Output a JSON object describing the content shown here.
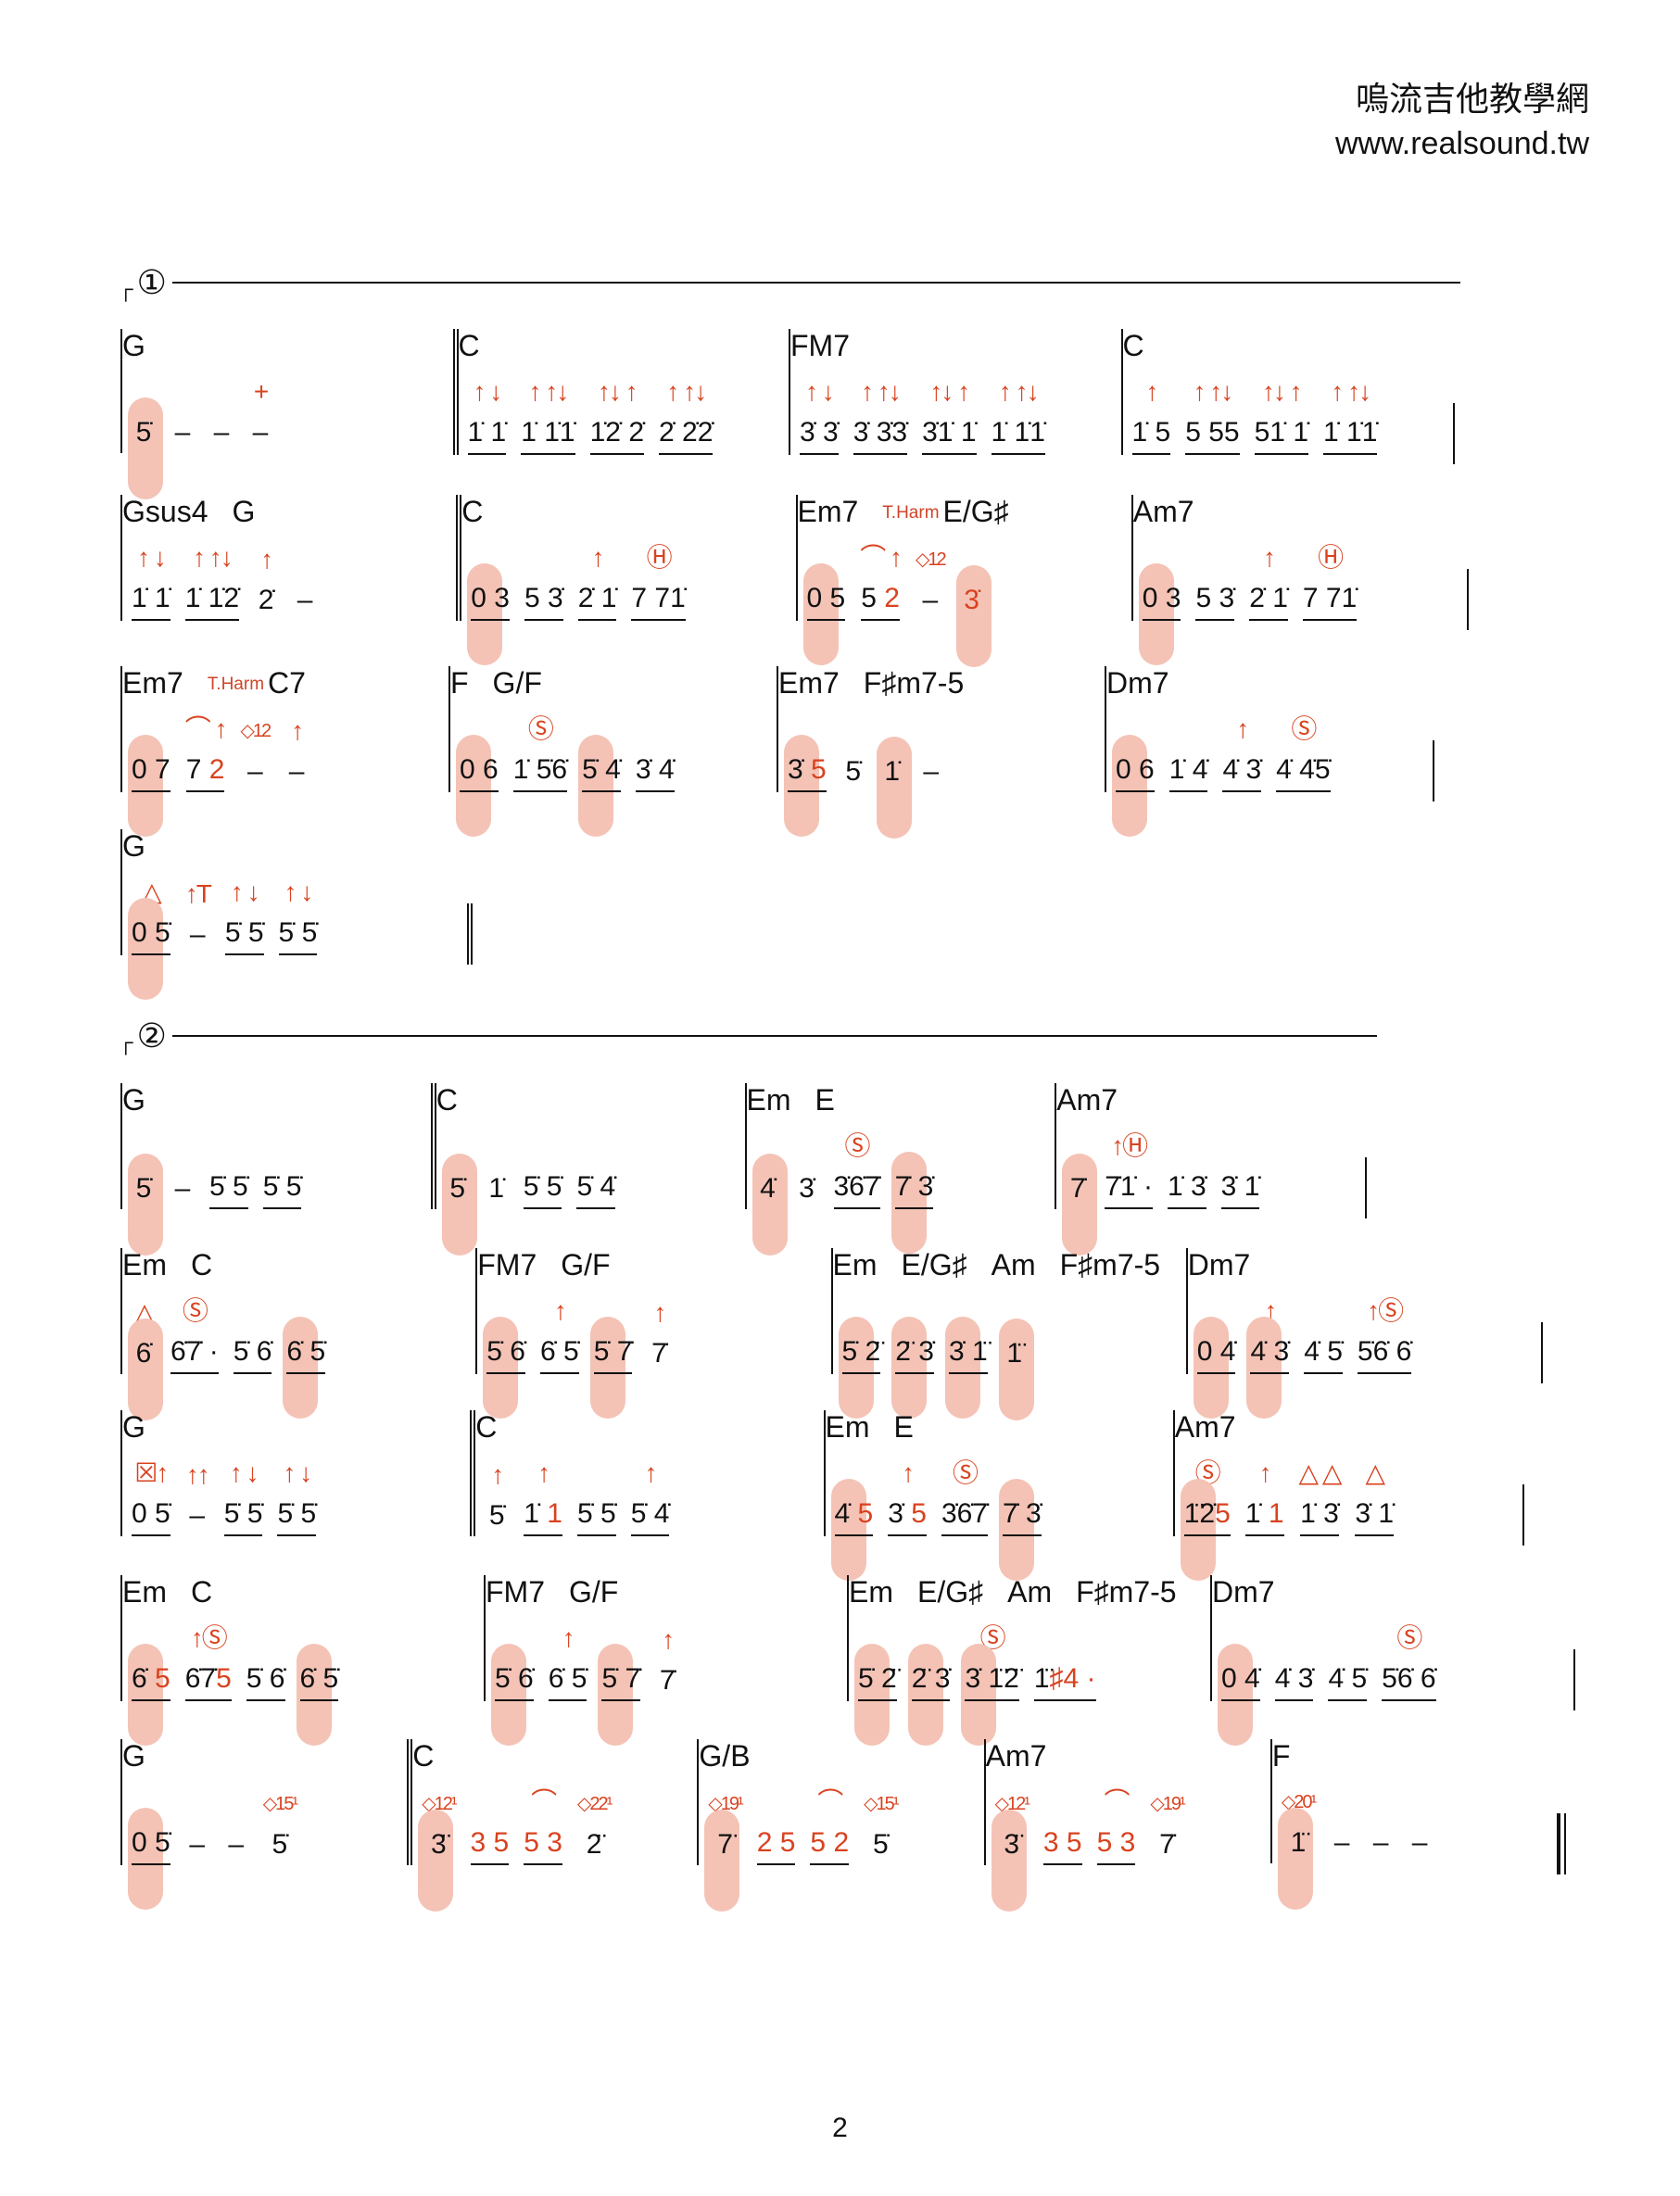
{
  "header": {
    "title": "嗚流吉他教學網",
    "url": "www.realsound.tw"
  },
  "sections": [
    {
      "label": "①"
    },
    {
      "label": "②"
    }
  ],
  "page_number": "2",
  "colors": {
    "accent": "#d9421f",
    "highlight": "#f4c3b6"
  },
  "rows": [
    {
      "measures": [
        {
          "chords": [
            "G"
          ],
          "beats": [
            {
              "n": "5̇",
              "hl": true
            },
            {
              "n": "–"
            },
            {
              "n": "–"
            },
            {
              "n": "–",
              "m": "+"
            }
          ]
        },
        {
          "bar": "dbl",
          "chords": [
            "C"
          ],
          "beats": [
            {
              "n": "1̇ 1̇",
              "m": "↑ ↓",
              "u": 1
            },
            {
              "n": "1̇ 1̇1̇",
              "m": "↑ ↑↓",
              "u": 1
            },
            {
              "n": "1̇2̇ 2̇",
              "m": "↑↓ ↑",
              "u": 1
            },
            {
              "n": "2̇ 2̇2̇",
              "m": "↑ ↑↓",
              "u": 1
            }
          ]
        },
        {
          "chords": [
            "FM7"
          ],
          "beats": [
            {
              "n": "3̇ 3̇",
              "m": "↑ ↓",
              "u": 1
            },
            {
              "n": "3̇ 3̇3̇",
              "m": "↑ ↑↓",
              "u": 1
            },
            {
              "n": "3̇1̇ 1̇",
              "m": "↑↓ ↑",
              "u": 1
            },
            {
              "n": "1̇ 1̇1̇",
              "m": "↑ ↑↓",
              "u": 1
            }
          ]
        },
        {
          "chords": [
            "C"
          ],
          "beats": [
            {
              "n": "1̇ 5",
              "m": "↑",
              "u": 1
            },
            {
              "n": "5 55",
              "m": "↑ ↑↓",
              "u": 1
            },
            {
              "n": "51̇ 1̇",
              "m": "↑↓ ↑",
              "u": 1
            },
            {
              "n": "1̇ 1̇1̇",
              "m": "↑ ↑↓",
              "u": 1
            }
          ]
        }
      ],
      "end": "single"
    },
    {
      "measures": [
        {
          "chords": [
            "Gsus4",
            "G"
          ],
          "beats": [
            {
              "n": "1̇ 1̇",
              "m": "↑ ↓",
              "u": 1
            },
            {
              "n": "1̇ 1̇2̇",
              "m": "↑ ↑↓",
              "u": 1
            },
            {
              "n": "2̇",
              "m": "↑"
            },
            {
              "n": "–"
            }
          ]
        },
        {
          "bar": "dbl",
          "chords": [
            "C"
          ],
          "beats": [
            {
              "n": "0 3",
              "hl": true,
              "u": 1
            },
            {
              "n": "5 3̇",
              "u": 1
            },
            {
              "n": "2̇ 1̇",
              "m": "↑",
              "u": 1
            },
            {
              "n": "7 71̇",
              "m": "Ⓗ",
              "u": 1
            }
          ]
        },
        {
          "chords": [
            "Em7",
            "T.Harm",
            "E/G♯"
          ],
          "beats": [
            {
              "n": "0 5",
              "hl": true,
              "u": 1
            },
            {
              "n": "5 ",
              "nr": "2",
              "m": "⌒ ↑",
              "u": 1
            },
            {
              "n": "–",
              "m": "◇12"
            },
            {
              "n": "",
              "nr": "3̇",
              "hl": true
            }
          ]
        },
        {
          "chords": [
            "Am7"
          ],
          "beats": [
            {
              "n": "0 3",
              "hl": true,
              "u": 1
            },
            {
              "n": "5 3̇",
              "u": 1
            },
            {
              "n": "2̇ 1̇",
              "m": "↑",
              "u": 1
            },
            {
              "n": "7 71̇",
              "m": "Ⓗ",
              "u": 1
            }
          ]
        }
      ],
      "end": "single"
    },
    {
      "measures": [
        {
          "chords": [
            "Em7",
            "T.Harm",
            "C7"
          ],
          "beats": [
            {
              "n": "0 7",
              "hl": true,
              "u": 1
            },
            {
              "n": "7 ",
              "nr": "2",
              "m": "⌒ ↑",
              "u": 1
            },
            {
              "n": "–",
              "m": "◇12"
            },
            {
              "n": "–",
              "m": "↑"
            }
          ]
        },
        {
          "chords": [
            "F",
            "G/F"
          ],
          "beats": [
            {
              "n": "0 6",
              "hl": true,
              "u": 1
            },
            {
              "n": "1̇ 5̇6̇",
              "m": "Ⓢ",
              "u": 1
            },
            {
              "n": "5̇ 4̇",
              "hl": true,
              "u": 1
            },
            {
              "n": "3̇ 4̇",
              "u": 1
            }
          ]
        },
        {
          "chords": [
            "Em7",
            "F♯m7-5"
          ],
          "beats": [
            {
              "n": "3̇ ",
              "nr": "5",
              "hl": true,
              "u": 1
            },
            {
              "n": "5̇"
            },
            {
              "n": "1̇",
              "hl": true
            },
            {
              "n": "–"
            }
          ]
        },
        {
          "chords": [
            "Dm7"
          ],
          "beats": [
            {
              "n": "0 6",
              "hl": true,
              "u": 1
            },
            {
              "n": "1̇ 4̇",
              "u": 1
            },
            {
              "n": "4̇ 3̇",
              "m": "↑",
              "u": 1
            },
            {
              "n": "4̇ 4̇5̇",
              "m": "Ⓢ",
              "u": 1
            }
          ]
        }
      ],
      "end": "single"
    },
    {
      "measures": [
        {
          "chords": [
            "G"
          ],
          "beats": [
            {
              "n": "0 5̇",
              "m": "△",
              "hl": true,
              "u": 1
            },
            {
              "n": "–",
              "m": "↑T"
            },
            {
              "n": "5̇ 5̇",
              "m": "↑ ↓",
              "u": 1
            },
            {
              "n": "5̇ 5̇",
              "m": "↑ ↓",
              "u": 1
            }
          ]
        }
      ],
      "end": "repeat"
    },
    {
      "measures": [
        {
          "chords": [
            "G"
          ],
          "beats": [
            {
              "n": "5̇",
              "hl": true
            },
            {
              "n": "–"
            },
            {
              "n": "5̇ 5̇",
              "u": 1
            },
            {
              "n": "5̇ 5̇",
              "u": 1
            }
          ]
        },
        {
          "bar": "dbl",
          "chords": [
            "C"
          ],
          "beats": [
            {
              "n": "5̇",
              "hl": true
            },
            {
              "n": "1̇"
            },
            {
              "n": "5̇ 5̇",
              "u": 1
            },
            {
              "n": "5̇ 4̇",
              "u": 1
            }
          ]
        },
        {
          "chords": [
            "Em",
            "E"
          ],
          "beats": [
            {
              "n": "4̇",
              "hl": true
            },
            {
              "n": "3̇"
            },
            {
              "n": "3̇6̇7̇",
              "m": "Ⓢ",
              "u": 1
            },
            {
              "n": "7̇ 3̇",
              "hl": true,
              "u": 1
            }
          ]
        },
        {
          "chords": [
            "Am7"
          ],
          "beats": [
            {
              "n": "7̇",
              "hl": true
            },
            {
              "n": "7̇1̇ ·",
              "m": "↑Ⓗ",
              "u": 1
            },
            {
              "n": "1̇ 3̇",
              "u": 1
            },
            {
              "n": "3̇ 1̇",
              "u": 1
            }
          ]
        }
      ],
      "end": "single"
    },
    {
      "measures": [
        {
          "chords": [
            "Em",
            "C"
          ],
          "beats": [
            {
              "n": "6̇",
              "m": "△",
              "hl": true
            },
            {
              "n": "6̇7̇ ·",
              "m": "Ⓢ",
              "u": 1
            },
            {
              "n": "5̇ 6̇",
              "u": 1
            },
            {
              "n": "6̇ 5̇",
              "hl": true,
              "u": 1
            }
          ]
        },
        {
          "chords": [
            "FM7",
            "G/F"
          ],
          "beats": [
            {
              "n": "5̇ 6̇",
              "hl": true,
              "u": 1
            },
            {
              "n": "6̇ 5̇",
              "m": "↑",
              "u": 1
            },
            {
              "n": "5̇ 7̇",
              "hl": true,
              "u": 1
            },
            {
              "n": "7̇",
              "m": "↑"
            }
          ]
        },
        {
          "chords": [
            "Em",
            "E/G♯",
            "Am",
            "F♯m7-5"
          ],
          "beats": [
            {
              "n": "5̇ 2̈",
              "hl": true,
              "u": 1
            },
            {
              "n": "2̈ 3̇",
              "hl": true,
              "u": 1
            },
            {
              "n": "3̇ 1̈",
              "hl": true,
              "u": 1
            },
            {
              "n": "1̈",
              "hl": true
            }
          ]
        },
        {
          "chords": [
            "Dm7"
          ],
          "beats": [
            {
              "n": "0 4̇",
              "hl": true,
              "u": 1
            },
            {
              "n": "4̇ 3̇",
              "m": "↑",
              "hl": true,
              "u": 1
            },
            {
              "n": "4̇ 5̇",
              "u": 1
            },
            {
              "n": "5̇6̇ 6̇",
              "m": "↑Ⓢ",
              "u": 1
            }
          ]
        }
      ],
      "end": "single"
    },
    {
      "measures": [
        {
          "chords": [
            "G"
          ],
          "beats": [
            {
              "n": "0 5̇",
              "m": "☒↑",
              "u": 1
            },
            {
              "n": "–",
              "m": "↑↑"
            },
            {
              "n": "5̇ 5̇",
              "m": "↑ ↓",
              "u": 1
            },
            {
              "n": "5̇ 5̇",
              "m": "↑ ↓",
              "u": 1
            }
          ]
        },
        {
          "bar": "dbl",
          "chords": [
            "C"
          ],
          "beats": [
            {
              "n": "5̇",
              "m": "↑"
            },
            {
              "n": "1̇ ",
              "nr": "1",
              "m": "↑",
              "u": 1
            },
            {
              "n": "5̇ 5̇",
              "u": 1
            },
            {
              "n": "5̇ 4̇",
              "m": "↑",
              "u": 1
            }
          ]
        },
        {
          "chords": [
            "Em",
            "E"
          ],
          "beats": [
            {
              "n": "4̇ ",
              "nr": "5",
              "hl": true,
              "u": 1
            },
            {
              "n": "3̇ ",
              "nr": "5",
              "m": "↑",
              "u": 1
            },
            {
              "n": "3̇6̇7̇",
              "m": "Ⓢ",
              "u": 1
            },
            {
              "n": "7̇ 3̇",
              "hl": true,
              "u": 1
            }
          ]
        },
        {
          "chords": [
            "Am7"
          ],
          "beats": [
            {
              "n": "1̈2̇",
              "nr": "5",
              "m": "Ⓢ",
              "hl": true,
              "u": 1
            },
            {
              "n": "1̇ ",
              "nr": "1",
              "m": "↑",
              "u": 1
            },
            {
              "n": "1̇ 3̇",
              "m": "△ △",
              "u": 1
            },
            {
              "n": "3̇ 1̇",
              "m": "△",
              "u": 1
            }
          ]
        }
      ],
      "end": "single"
    },
    {
      "measures": [
        {
          "chords": [
            "Em",
            "C"
          ],
          "beats": [
            {
              "n": "6̇ ",
              "nr": "5",
              "hl": true,
              "u": 1
            },
            {
              "n": "6̇7̇",
              "nr": "5",
              "m": "↑Ⓢ",
              "u": 1
            },
            {
              "n": "5̇ 6̇",
              "u": 1
            },
            {
              "n": "6̇ 5̇",
              "hl": true,
              "u": 1
            }
          ]
        },
        {
          "chords": [
            "FM7",
            "G/F"
          ],
          "beats": [
            {
              "n": "5̇ 6̇",
              "hl": true,
              "u": 1
            },
            {
              "n": "6̇ 5̇",
              "m": "↑",
              "u": 1
            },
            {
              "n": "5̇ 7̇",
              "hl": true,
              "u": 1
            },
            {
              "n": "7̇",
              "m": "↑"
            }
          ]
        },
        {
          "chords": [
            "Em",
            "E/G♯",
            "Am",
            "F♯m7-5"
          ],
          "beats": [
            {
              "n": "5̇ 2̈",
              "hl": true,
              "u": 1
            },
            {
              "n": "2̈ 3̇",
              "hl": true,
              "u": 1
            },
            {
              "n": "3̇ 1̈2̈",
              "m": "Ⓢ",
              "hl": true,
              "u": 1
            },
            {
              "n": "1̈",
              "nr": "♯4 ·",
              "u": 1
            }
          ]
        },
        {
          "chords": [
            "Dm7"
          ],
          "beats": [
            {
              "n": "0 4̇",
              "hl": true,
              "u": 1
            },
            {
              "n": "4̇ 3̇",
              "u": 1
            },
            {
              "n": "4̇ 5̇",
              "u": 1
            },
            {
              "n": "5̇6̇ 6̇",
              "m": "Ⓢ",
              "u": 1
            }
          ]
        }
      ],
      "end": "single"
    },
    {
      "measures": [
        {
          "chords": [
            "G"
          ],
          "beats": [
            {
              "n": "0 5̇",
              "hl": true,
              "u": 1
            },
            {
              "n": "–"
            },
            {
              "n": "–"
            },
            {
              "n": "5̇",
              "m": "◇15¹"
            }
          ]
        },
        {
          "bar": "dbl",
          "chords": [
            "C"
          ],
          "beats": [
            {
              "n": "3̈",
              "m": "◇12¹",
              "hl": true
            },
            {
              "n": "",
              "nr": "3 5",
              "u": 1
            },
            {
              "n": "",
              "nr": "5 3",
              "m": "⌒",
              "u": 1
            },
            {
              "n": "2̈",
              "m": "◇22¹"
            }
          ]
        },
        {
          "chords": [
            "G/B"
          ],
          "beats": [
            {
              "n": "7̈",
              "m": "◇19¹",
              "hl": true
            },
            {
              "n": "",
              "nr": "2 5",
              "u": 1
            },
            {
              "n": "",
              "nr": "5 2",
              "m": "⌒",
              "u": 1
            },
            {
              "n": "5̇",
              "m": "◇15¹"
            }
          ]
        },
        {
          "chords": [
            "Am7"
          ],
          "beats": [
            {
              "n": "3̈",
              "m": "◇12¹",
              "hl": true
            },
            {
              "n": "",
              "nr": "3 5",
              "u": 1
            },
            {
              "n": "",
              "nr": "5 3",
              "m": "⌒",
              "u": 1
            },
            {
              "n": "7̇",
              "m": "◇19¹"
            }
          ]
        },
        {
          "chords": [
            "F"
          ],
          "beats": [
            {
              "n": "1̈",
              "m": "◇20¹",
              "hl": true
            },
            {
              "n": "–"
            },
            {
              "n": "–"
            },
            {
              "n": "–"
            }
          ]
        }
      ],
      "end": "final"
    }
  ]
}
